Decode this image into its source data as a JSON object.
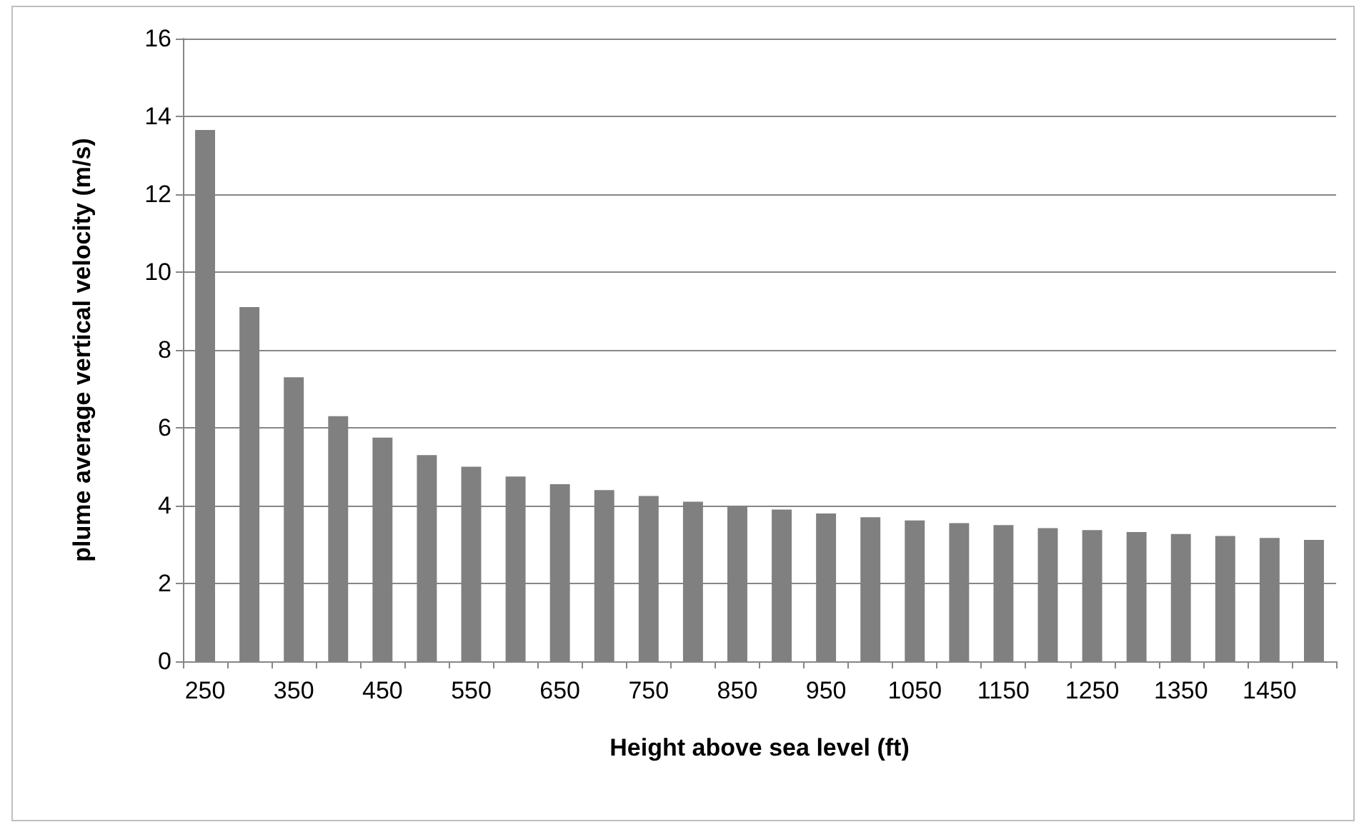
{
  "chart_data": {
    "type": "bar",
    "xlabel": "Height above sea level (ft)",
    "ylabel": "plume average vertical velocity (m/s)",
    "categories": [
      "250",
      null,
      "350",
      null,
      "450",
      null,
      "550",
      null,
      "650",
      null,
      "750",
      null,
      "850",
      null,
      "950",
      null,
      "1050",
      null,
      "1150",
      null,
      "1250",
      null,
      "1350",
      null,
      "1450",
      null
    ],
    "values": [
      13.65,
      9.1,
      7.3,
      6.3,
      5.75,
      5.3,
      5.0,
      4.75,
      4.55,
      4.4,
      4.25,
      4.1,
      4.0,
      3.9,
      3.8,
      3.7,
      3.62,
      3.55,
      3.5,
      3.42,
      3.37,
      3.32,
      3.27,
      3.22,
      3.17,
      3.12
    ],
    "color": "#808080",
    "ylim": [
      0,
      16
    ],
    "yticks": [
      0,
      2,
      4,
      6,
      8,
      10,
      12,
      14,
      16
    ],
    "grid": "y"
  }
}
